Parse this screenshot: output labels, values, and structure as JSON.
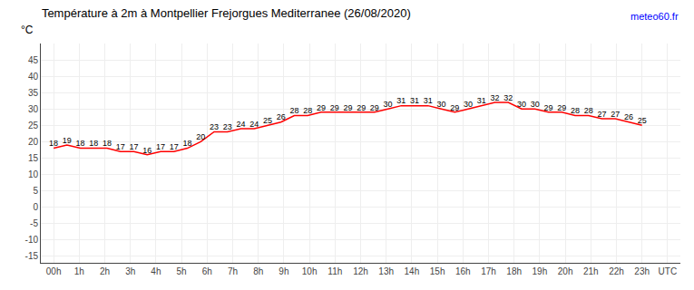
{
  "chart_data": {
    "type": "line",
    "title": "Température à 2m à Montpellier Frejorgues Mediterranee (26/08/2020)",
    "ylabel": "°C",
    "annotations": [
      "meteo60.fr"
    ],
    "x": [
      0,
      0.5227272727272727,
      1.0454545454545454,
      1.5681818181818181,
      2.090909090909091,
      2.6136363636363638,
      3.1363636363636362,
      3.659090909090909,
      4.181818181818182,
      4.704545454545454,
      5.2272727272727275,
      5.75,
      6.2727272727272725,
      6.795454545454545,
      7.318181818181818,
      7.840909090909091,
      8.363636363636363,
      8.886363636363637,
      9.409090909090908,
      9.931818181818182,
      10.454545454545455,
      10.977272727272727,
      11.5,
      12.022727272727273,
      12.545454545454545,
      13.068181818181818,
      13.590909090909092,
      14.113636363636363,
      14.636363636363637,
      15.159090909090908,
      15.681818181818182,
      16.204545454545453,
      16.727272727272727,
      17.25,
      17.772727272727273,
      18.295454545454547,
      18.818181818181817,
      19.34090909090909,
      19.863636363636363,
      20.386363636363637,
      20.90909090909091,
      21.431818181818183,
      21.954545454545453,
      22.477272727272727,
      23
    ],
    "values": [
      18,
      19,
      18,
      18,
      18,
      17,
      17,
      16,
      17,
      17,
      18,
      20,
      23,
      23,
      24,
      24,
      25,
      26,
      28,
      28,
      29,
      29,
      29,
      29,
      29,
      30,
      31,
      31,
      31,
      30,
      29,
      30,
      31,
      32,
      32,
      30,
      30,
      29,
      29,
      28,
      28,
      27,
      27,
      26,
      25
    ],
    "color": "#ff0000",
    "data_labels": true,
    "grid": true,
    "xlim": [
      -0.5,
      24.5
    ],
    "xticks": [
      {
        "value": 0,
        "label": "00h"
      },
      {
        "value": 1,
        "label": "1h"
      },
      {
        "value": 2,
        "label": "2h"
      },
      {
        "value": 3,
        "label": "3h"
      },
      {
        "value": 4,
        "label": "4h"
      },
      {
        "value": 5,
        "label": "5h"
      },
      {
        "value": 6,
        "label": "6h"
      },
      {
        "value": 7,
        "label": "7h"
      },
      {
        "value": 8,
        "label": "8h"
      },
      {
        "value": 9,
        "label": "9h"
      },
      {
        "value": 10,
        "label": "10h"
      },
      {
        "value": 11,
        "label": "11h"
      },
      {
        "value": 12,
        "label": "12h"
      },
      {
        "value": 13,
        "label": "13h"
      },
      {
        "value": 14,
        "label": "14h"
      },
      {
        "value": 15,
        "label": "15h"
      },
      {
        "value": 16,
        "label": "16h"
      },
      {
        "value": 17,
        "label": "17h"
      },
      {
        "value": 18,
        "label": "18h"
      },
      {
        "value": 19,
        "label": "19h"
      },
      {
        "value": 20,
        "label": "20h"
      },
      {
        "value": 21,
        "label": "21h"
      },
      {
        "value": 22,
        "label": "22h"
      },
      {
        "value": 23,
        "label": "23h"
      },
      {
        "value": 24,
        "label": "UTC"
      }
    ],
    "ylim": [
      -17,
      50
    ],
    "yticks": [
      -15,
      -10,
      -5,
      0,
      5,
      10,
      15,
      20,
      25,
      30,
      35,
      40,
      45
    ]
  }
}
